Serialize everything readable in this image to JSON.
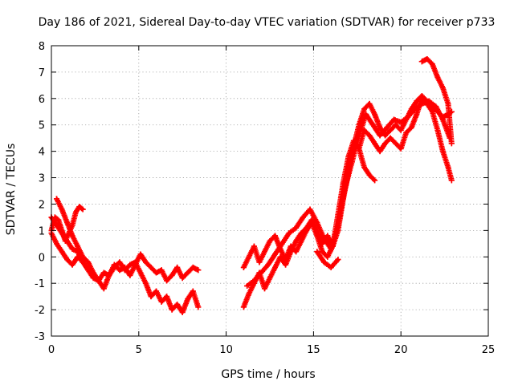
{
  "chart_data": {
    "type": "scatter",
    "title": "Day 186 of 2021, Sidereal Day-to-day VTEC variation (SDTVAR) for receiver p733",
    "xlabel": "GPS time / hours",
    "ylabel": "SDTVAR / TECUs",
    "xlim": [
      0,
      25
    ],
    "ylim": [
      -3,
      8
    ],
    "xticks": [
      0,
      5,
      10,
      15,
      20,
      25
    ],
    "yticks": [
      -3,
      -2,
      -1,
      0,
      1,
      2,
      3,
      4,
      5,
      6,
      7,
      8
    ],
    "grid": true,
    "marker": "+",
    "color": "#ff0000",
    "series": [
      {
        "name": "early-a",
        "x": [
          0.0,
          0.3,
          0.6,
          0.9,
          1.2,
          1.5,
          1.8,
          2.1,
          2.4,
          2.7,
          3.0,
          3.3,
          3.6,
          3.9,
          4.2,
          4.5,
          4.8,
          5.1,
          5.4,
          5.7,
          6.0,
          6.3,
          6.6,
          6.9,
          7.2,
          7.5,
          7.8,
          8.1,
          8.4
        ],
        "y": [
          1.5,
          1.2,
          0.9,
          0.6,
          0.3,
          0.2,
          -0.2,
          -0.5,
          -0.8,
          -0.9,
          -0.6,
          -0.7,
          -0.3,
          -0.5,
          -0.4,
          -0.7,
          -0.3,
          0.1,
          -0.2,
          -0.4,
          -0.6,
          -0.5,
          -0.9,
          -0.7,
          -0.4,
          -0.8,
          -0.6,
          -0.4,
          -0.5
        ]
      },
      {
        "name": "early-b",
        "x": [
          0.0,
          0.2,
          0.4,
          0.6,
          0.8,
          1.0,
          1.2,
          1.4,
          1.6,
          1.8
        ],
        "y": [
          1.0,
          1.5,
          1.4,
          1.0,
          0.6,
          0.9,
          1.2,
          1.7,
          1.9,
          1.8
        ]
      },
      {
        "name": "early-c",
        "x": [
          0.3,
          0.6,
          0.9,
          1.2,
          1.5,
          1.8,
          2.1,
          2.4,
          2.7,
          3.0,
          3.3,
          3.6,
          3.9,
          4.2,
          4.5,
          4.8,
          5.1,
          5.4,
          5.7,
          6.0,
          6.3,
          6.6,
          6.9,
          7.2,
          7.5,
          7.8,
          8.1,
          8.4
        ],
        "y": [
          2.2,
          1.8,
          1.3,
          0.8,
          0.4,
          0.0,
          -0.2,
          -0.6,
          -0.9,
          -1.2,
          -0.7,
          -0.4,
          -0.2,
          -0.5,
          -0.3,
          -0.2,
          -0.6,
          -1.0,
          -1.5,
          -1.3,
          -1.7,
          -1.5,
          -2.0,
          -1.8,
          -2.1,
          -1.6,
          -1.3,
          -1.9
        ]
      },
      {
        "name": "early-d",
        "x": [
          0.0,
          0.3,
          0.6,
          0.9,
          1.2,
          1.5,
          1.8
        ],
        "y": [
          0.9,
          0.5,
          0.2,
          -0.1,
          -0.3,
          0.0,
          -0.2
        ]
      },
      {
        "name": "late-a",
        "x": [
          11.0,
          11.3,
          11.6,
          11.9,
          12.2,
          12.5,
          12.8,
          13.1,
          13.4,
          13.7,
          14.0,
          14.3,
          14.6,
          14.9,
          15.2,
          15.5,
          15.8,
          16.1,
          16.4,
          16.7,
          17.0,
          17.3,
          17.6,
          17.9,
          18.2,
          18.5,
          18.8,
          19.1,
          19.4,
          19.7,
          20.0,
          20.3,
          20.6,
          20.9,
          21.2,
          21.5,
          21.8,
          22.1,
          22.4,
          22.7,
          22.9
        ],
        "y": [
          -1.9,
          -1.4,
          -1.0,
          -0.6,
          -1.2,
          -0.8,
          -0.4,
          0.0,
          -0.3,
          0.2,
          0.6,
          0.9,
          1.1,
          1.4,
          1.0,
          0.5,
          0.8,
          0.4,
          1.6,
          2.8,
          3.8,
          4.4,
          4.1,
          4.8,
          4.6,
          4.3,
          4.0,
          4.3,
          4.5,
          4.3,
          4.1,
          4.7,
          4.9,
          5.4,
          6.0,
          5.8,
          5.5,
          4.8,
          4.0,
          3.4,
          2.9
        ]
      },
      {
        "name": "late-b",
        "x": [
          11.0,
          11.3,
          11.6,
          11.9,
          12.2,
          12.5,
          12.8,
          13.1,
          13.4,
          13.7,
          14.0,
          14.3,
          14.6,
          14.9,
          15.2,
          15.5,
          15.8,
          16.1,
          16.4,
          16.7,
          17.0,
          17.3,
          17.6,
          17.9,
          18.2,
          18.5,
          18.8,
          19.1,
          19.4,
          19.7,
          20.0,
          20.3,
          20.6,
          20.9,
          21.2,
          21.5,
          21.8,
          22.1,
          22.4,
          22.7,
          22.9
        ],
        "y": [
          -0.4,
          0.0,
          0.4,
          -0.2,
          0.2,
          0.6,
          0.8,
          0.3,
          -0.1,
          0.4,
          0.2,
          0.6,
          1.0,
          1.3,
          0.8,
          0.2,
          0.0,
          0.4,
          1.0,
          2.2,
          3.2,
          4.2,
          5.0,
          5.6,
          5.8,
          5.4,
          4.9,
          4.6,
          4.8,
          5.0,
          4.8,
          5.2,
          5.6,
          5.9,
          6.1,
          5.9,
          5.7,
          5.5,
          5.3,
          5.4,
          5.5
        ]
      },
      {
        "name": "late-c",
        "x": [
          11.2,
          11.6,
          12.0,
          12.4,
          12.8,
          13.2,
          13.6,
          14.0,
          14.4,
          14.8,
          15.2,
          15.6,
          16.0,
          16.4,
          16.8,
          17.2,
          17.6,
          18.0,
          18.4,
          18.8,
          19.2,
          19.6,
          20.0,
          20.4,
          20.8,
          21.2,
          21.6,
          22.0,
          22.4,
          22.8
        ],
        "y": [
          -1.1,
          -0.9,
          -0.6,
          -0.3,
          0.1,
          0.5,
          0.9,
          1.1,
          1.5,
          1.8,
          1.3,
          0.7,
          0.3,
          1.2,
          2.6,
          3.6,
          4.6,
          5.4,
          5.0,
          4.6,
          4.9,
          5.2,
          5.1,
          5.3,
          5.6,
          5.8,
          5.9,
          5.7,
          5.2,
          4.5
        ]
      },
      {
        "name": "late-d",
        "x": [
          21.2,
          21.5,
          21.8,
          22.1,
          22.4,
          22.7,
          22.9
        ],
        "y": [
          7.4,
          7.5,
          7.3,
          6.8,
          6.4,
          5.8,
          4.3
        ]
      },
      {
        "name": "late-e",
        "x": [
          17.6,
          17.9,
          18.2,
          18.5
        ],
        "y": [
          4.1,
          3.4,
          3.1,
          2.9
        ]
      },
      {
        "name": "late-f",
        "x": [
          15.2,
          15.6,
          16.0,
          16.4
        ],
        "y": [
          0.2,
          -0.2,
          -0.4,
          -0.1
        ]
      }
    ]
  }
}
